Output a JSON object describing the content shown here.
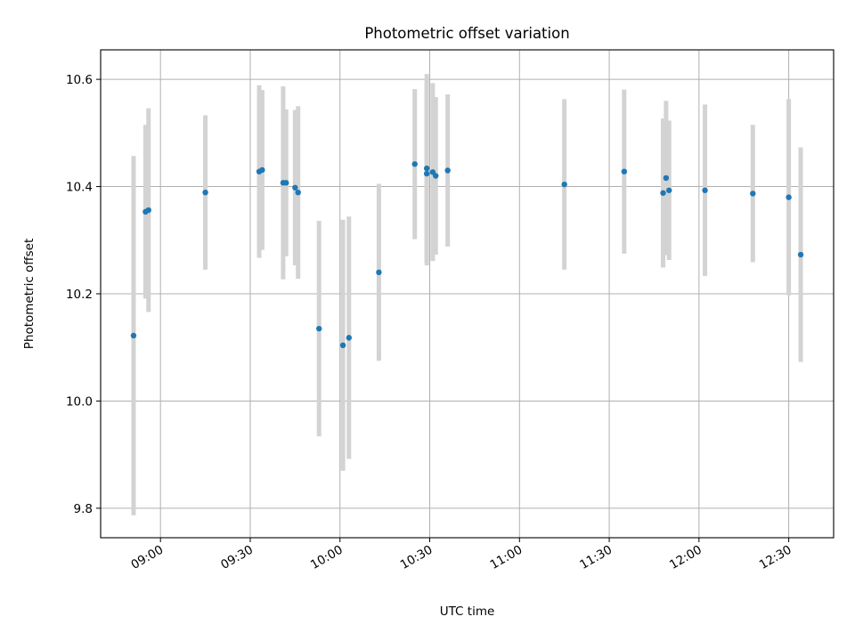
{
  "chart_data": {
    "type": "scatter",
    "title": "Photometric offset variation",
    "xlabel": "UTC time",
    "ylabel": "Photometric offset",
    "xlim": [
      "08:40",
      "12:45"
    ],
    "ylim": [
      9.745,
      10.655
    ],
    "x_ticks": [
      "09:00",
      "09:30",
      "10:00",
      "10:30",
      "11:00",
      "11:30",
      "12:00",
      "12:30"
    ],
    "y_ticks": [
      "9.8",
      "10.0",
      "10.2",
      "10.4",
      "10.6"
    ],
    "grid": true,
    "point_color": "#1f77b4",
    "errorbar_color": "#d3d3d3",
    "points": [
      {
        "x": "08:51",
        "y": 10.122,
        "err": 0.335
      },
      {
        "x": "08:55",
        "y": 10.353,
        "err": 0.162
      },
      {
        "x": "08:56",
        "y": 10.356,
        "err": 0.19
      },
      {
        "x": "09:15",
        "y": 10.389,
        "err": 0.144
      },
      {
        "x": "09:33",
        "y": 10.428,
        "err": 0.161
      },
      {
        "x": "09:34",
        "y": 10.431,
        "err": 0.149
      },
      {
        "x": "09:41",
        "y": 10.407,
        "err": 0.18
      },
      {
        "x": "09:42",
        "y": 10.407,
        "err": 0.137
      },
      {
        "x": "09:45",
        "y": 10.398,
        "err": 0.145
      },
      {
        "x": "09:46",
        "y": 10.389,
        "err": 0.161
      },
      {
        "x": "09:53",
        "y": 10.135,
        "err": 0.201
      },
      {
        "x": "10:01",
        "y": 10.104,
        "err": 0.234
      },
      {
        "x": "10:03",
        "y": 10.118,
        "err": 0.226
      },
      {
        "x": "10:13",
        "y": 10.24,
        "err": 0.165
      },
      {
        "x": "10:25",
        "y": 10.442,
        "err": 0.14
      },
      {
        "x": "10:29",
        "y": 10.434,
        "err": 0.176
      },
      {
        "x": "10:29",
        "y": 10.424,
        "err": 0.171
      },
      {
        "x": "10:31",
        "y": 10.427,
        "err": 0.166
      },
      {
        "x": "10:32",
        "y": 10.42,
        "err": 0.147
      },
      {
        "x": "10:36",
        "y": 10.43,
        "err": 0.142
      },
      {
        "x": "11:15",
        "y": 10.404,
        "err": 0.159
      },
      {
        "x": "11:35",
        "y": 10.428,
        "err": 0.153
      },
      {
        "x": "11:48",
        "y": 10.388,
        "err": 0.139
      },
      {
        "x": "11:49",
        "y": 10.416,
        "err": 0.144
      },
      {
        "x": "11:50",
        "y": 10.393,
        "err": 0.13
      },
      {
        "x": "12:02",
        "y": 10.393,
        "err": 0.16
      },
      {
        "x": "12:18",
        "y": 10.387,
        "err": 0.128
      },
      {
        "x": "12:30",
        "y": 10.38,
        "err": 0.183
      },
      {
        "x": "12:34",
        "y": 10.273,
        "err": 0.2
      }
    ]
  }
}
